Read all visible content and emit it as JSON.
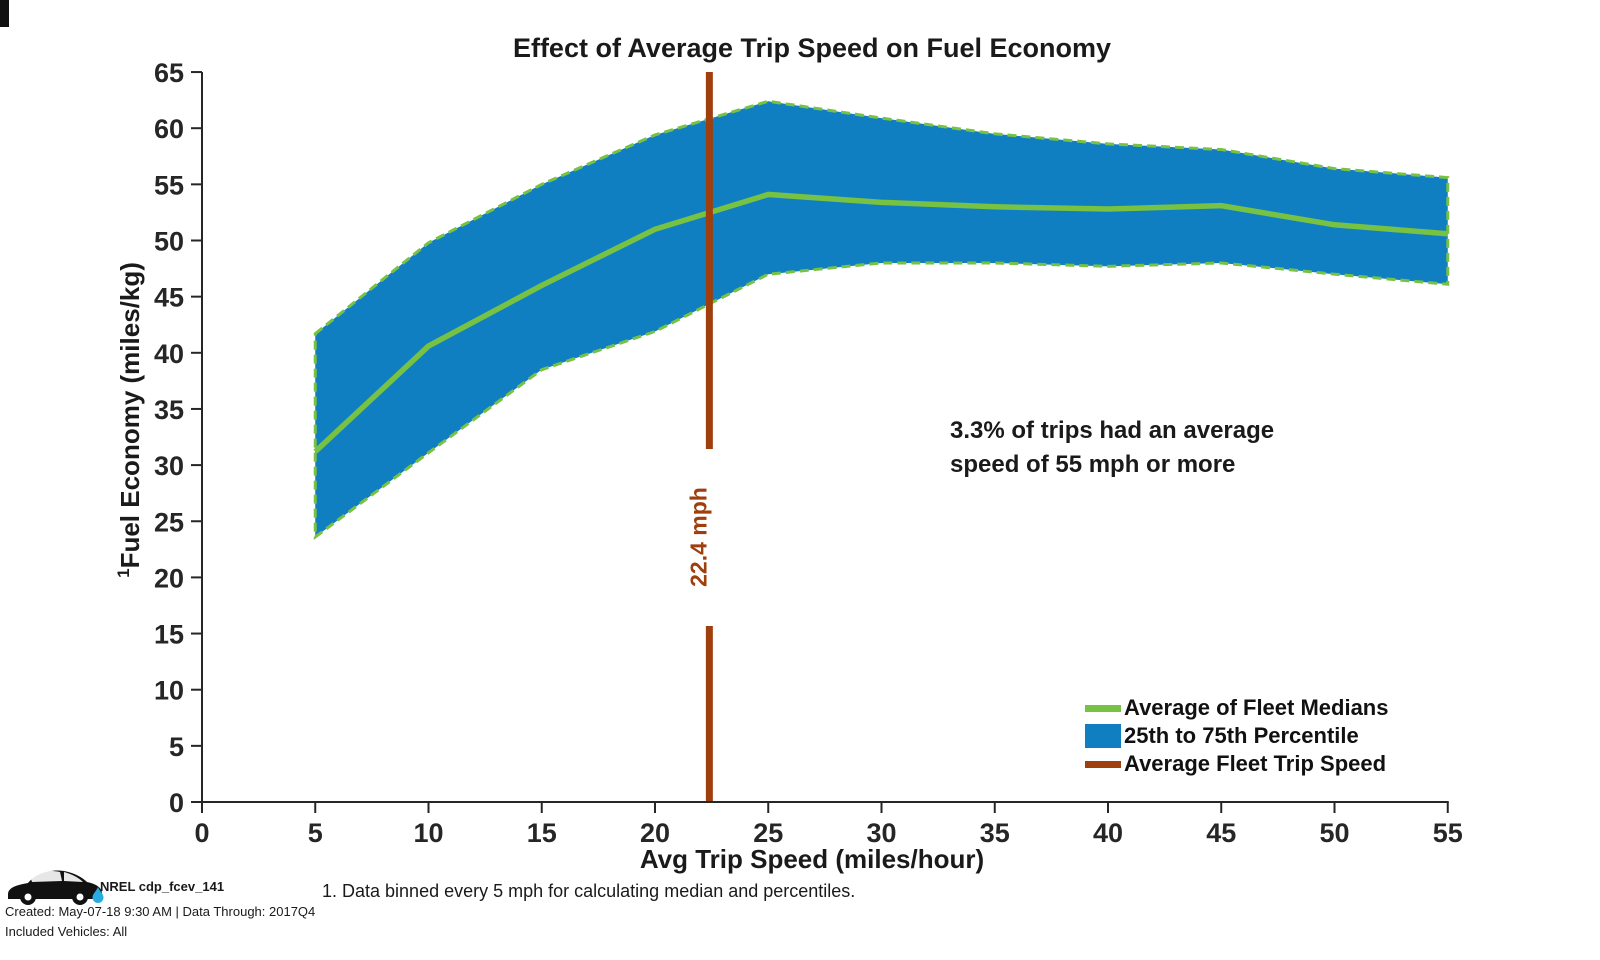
{
  "title": "Effect of Average Trip Speed on Fuel Economy",
  "axes": {
    "x_label": "Avg Trip Speed (miles/hour)",
    "y_label_sup": "1",
    "y_label": "Fuel Economy (miles/kg)"
  },
  "chart_data": {
    "type": "area",
    "title": "Effect of Average Trip Speed on Fuel Economy",
    "xlabel": "Avg Trip Speed (miles/hour)",
    "ylabel": "1Fuel Economy (miles/kg)",
    "xlim": [
      0,
      55
    ],
    "ylim": [
      0,
      65
    ],
    "grid": false,
    "legend_position": "bottom-right",
    "x": [
      5,
      10,
      15,
      20,
      25,
      30,
      35,
      40,
      45,
      50,
      55
    ],
    "series": [
      {
        "name": "Average of Fleet Medians",
        "role": "median-line",
        "values": [
          31.2,
          40.6,
          46.0,
          51.0,
          54.1,
          53.4,
          53.0,
          52.8,
          53.1,
          51.4,
          50.6
        ]
      },
      {
        "name": "75th Percentile (band top)",
        "role": "band-upper",
        "values": [
          41.7,
          49.8,
          55.0,
          59.4,
          62.4,
          60.9,
          59.5,
          58.6,
          58.1,
          56.4,
          55.6
        ]
      },
      {
        "name": "25th Percentile (band bottom)",
        "role": "band-lower",
        "values": [
          23.6,
          31.1,
          38.5,
          41.9,
          47.0,
          48.0,
          48.0,
          47.7,
          48.0,
          47.0,
          46.1
        ]
      }
    ],
    "vline": {
      "x": 22.4,
      "label": "22.4 mph"
    },
    "x_ticks": [
      0,
      5,
      10,
      15,
      20,
      25,
      30,
      35,
      40,
      45,
      50,
      55
    ],
    "y_ticks": [
      0,
      5,
      10,
      15,
      20,
      25,
      30,
      35,
      40,
      45,
      50,
      55,
      60,
      65
    ]
  },
  "annotation": {
    "line1": "3.3% of trips had an average",
    "line2": "speed of 55 mph or more"
  },
  "avg_line": {
    "value": 22.4,
    "label": "22.4 mph"
  },
  "legend": [
    {
      "swatch": "line",
      "color_key": "line_green",
      "label": "Average of Fleet Medians"
    },
    {
      "swatch": "rect",
      "color_key": "band_blue",
      "label": "25th to 75th Percentile"
    },
    {
      "swatch": "line",
      "color_key": "avg_brown",
      "label": "Average Fleet Trip Speed"
    }
  ],
  "footer": {
    "logo_icon": "car-silhouette-with-droplet",
    "logo_label": "NREL cdp_fcev_141",
    "created": "Created: May-07-18  9:30 AM | Data Through: 2017Q4",
    "included": "Included Vehicles: All"
  },
  "footnote": "1. Data binned every 5 mph for calculating median and percentiles.",
  "colors": {
    "band_blue": "#0F7FC2",
    "line_green": "#77C143",
    "avg_brown": "#9E3F0D",
    "drop_blue": "#29ABE2",
    "axis_black": "#262626"
  }
}
